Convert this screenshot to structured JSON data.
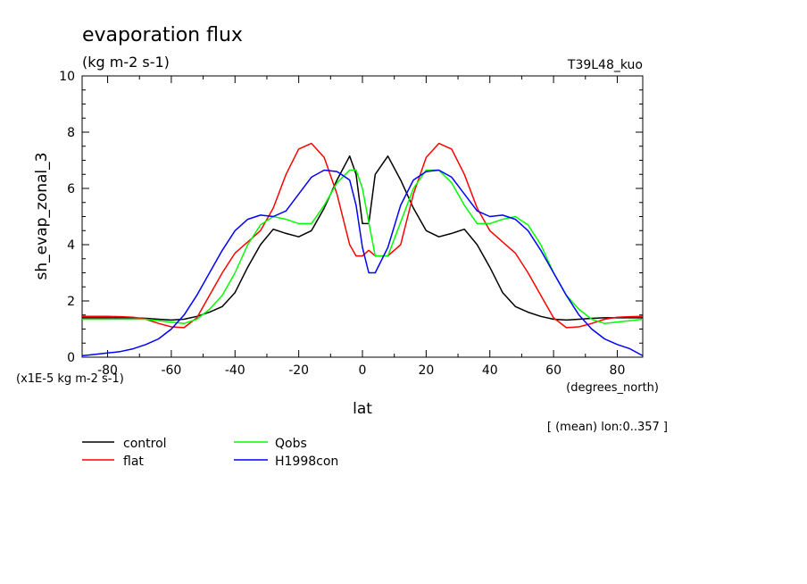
{
  "chart_data": {
    "type": "line",
    "title": "evaporation flux",
    "subtitle": "(kg m-2 s-1)",
    "run_label": "T39L48_kuo",
    "xlabel": "lat",
    "x_units": "(degrees_north)",
    "ylabel": "sh_evap_zonal_3",
    "y_scale_note": "(x1E-5 kg m-2 s-1)",
    "mean_note": "[ (mean) lon:0..357 ]",
    "xlim": [
      -88,
      88
    ],
    "ylim": [
      0,
      10
    ],
    "xticks": [
      -80,
      -60,
      -40,
      -20,
      0,
      20,
      40,
      60,
      80
    ],
    "yticks": [
      0,
      2,
      4,
      6,
      8,
      10
    ],
    "grid": false,
    "legend_position": "bottom-left",
    "x": [
      -88,
      -84,
      -80,
      -76,
      -72,
      -68,
      -64,
      -60,
      -56,
      -52,
      -48,
      -44,
      -40,
      -36,
      -32,
      -28,
      -24,
      -20,
      -16,
      -12,
      -8,
      -4,
      -2,
      0,
      2,
      4,
      8,
      12,
      16,
      20,
      24,
      28,
      32,
      36,
      40,
      44,
      48,
      52,
      56,
      60,
      64,
      68,
      72,
      76,
      80,
      84,
      88
    ],
    "series": [
      {
        "name": "control",
        "color": "#000000",
        "values": [
          1.4,
          1.4,
          1.4,
          1.4,
          1.4,
          1.38,
          1.35,
          1.32,
          1.35,
          1.45,
          1.6,
          1.8,
          2.3,
          3.2,
          4.0,
          4.55,
          4.4,
          4.28,
          4.5,
          5.3,
          6.3,
          7.15,
          6.5,
          4.75,
          4.75,
          6.5,
          7.15,
          6.3,
          5.3,
          4.5,
          4.28,
          4.4,
          4.55,
          4.0,
          3.2,
          2.3,
          1.8,
          1.6,
          1.45,
          1.35,
          1.32,
          1.35,
          1.38,
          1.4,
          1.4,
          1.4,
          1.4
        ]
      },
      {
        "name": "flat",
        "color": "#ff0000",
        "values": [
          1.45,
          1.45,
          1.45,
          1.44,
          1.42,
          1.35,
          1.2,
          1.08,
          1.05,
          1.4,
          2.2,
          3.0,
          3.7,
          4.1,
          4.5,
          5.3,
          6.5,
          7.4,
          7.6,
          7.1,
          5.8,
          4.0,
          3.6,
          3.6,
          3.8,
          3.6,
          3.6,
          4.0,
          5.8,
          7.1,
          7.6,
          7.4,
          6.5,
          5.3,
          4.5,
          4.1,
          3.7,
          3.0,
          2.2,
          1.4,
          1.05,
          1.08,
          1.2,
          1.35,
          1.42,
          1.44,
          1.45
        ]
      },
      {
        "name": "Qobs",
        "color": "#00ff00",
        "values": [
          1.35,
          1.35,
          1.35,
          1.35,
          1.35,
          1.35,
          1.3,
          1.25,
          1.2,
          1.35,
          1.7,
          2.2,
          3.0,
          4.0,
          4.7,
          5.0,
          4.9,
          4.75,
          4.75,
          5.4,
          6.2,
          6.65,
          6.65,
          6.0,
          4.8,
          3.6,
          3.6,
          4.8,
          6.0,
          6.65,
          6.65,
          6.2,
          5.4,
          4.75,
          4.75,
          4.9,
          5.0,
          4.7,
          4.0,
          3.0,
          2.2,
          1.7,
          1.35,
          1.2,
          1.25,
          1.3,
          1.35
        ]
      },
      {
        "name": "H1998con",
        "color": "#0000ff",
        "values": [
          0.05,
          0.1,
          0.15,
          0.2,
          0.3,
          0.45,
          0.65,
          1.0,
          1.5,
          2.2,
          3.0,
          3.8,
          4.5,
          4.9,
          5.05,
          5.0,
          5.2,
          5.8,
          6.4,
          6.65,
          6.6,
          6.3,
          5.4,
          3.9,
          3.0,
          3.0,
          3.9,
          5.4,
          6.3,
          6.6,
          6.65,
          6.4,
          5.8,
          5.2,
          5.0,
          5.05,
          4.9,
          4.5,
          3.8,
          3.0,
          2.2,
          1.5,
          1.0,
          0.65,
          0.45,
          0.3,
          0.05
        ]
      }
    ]
  }
}
